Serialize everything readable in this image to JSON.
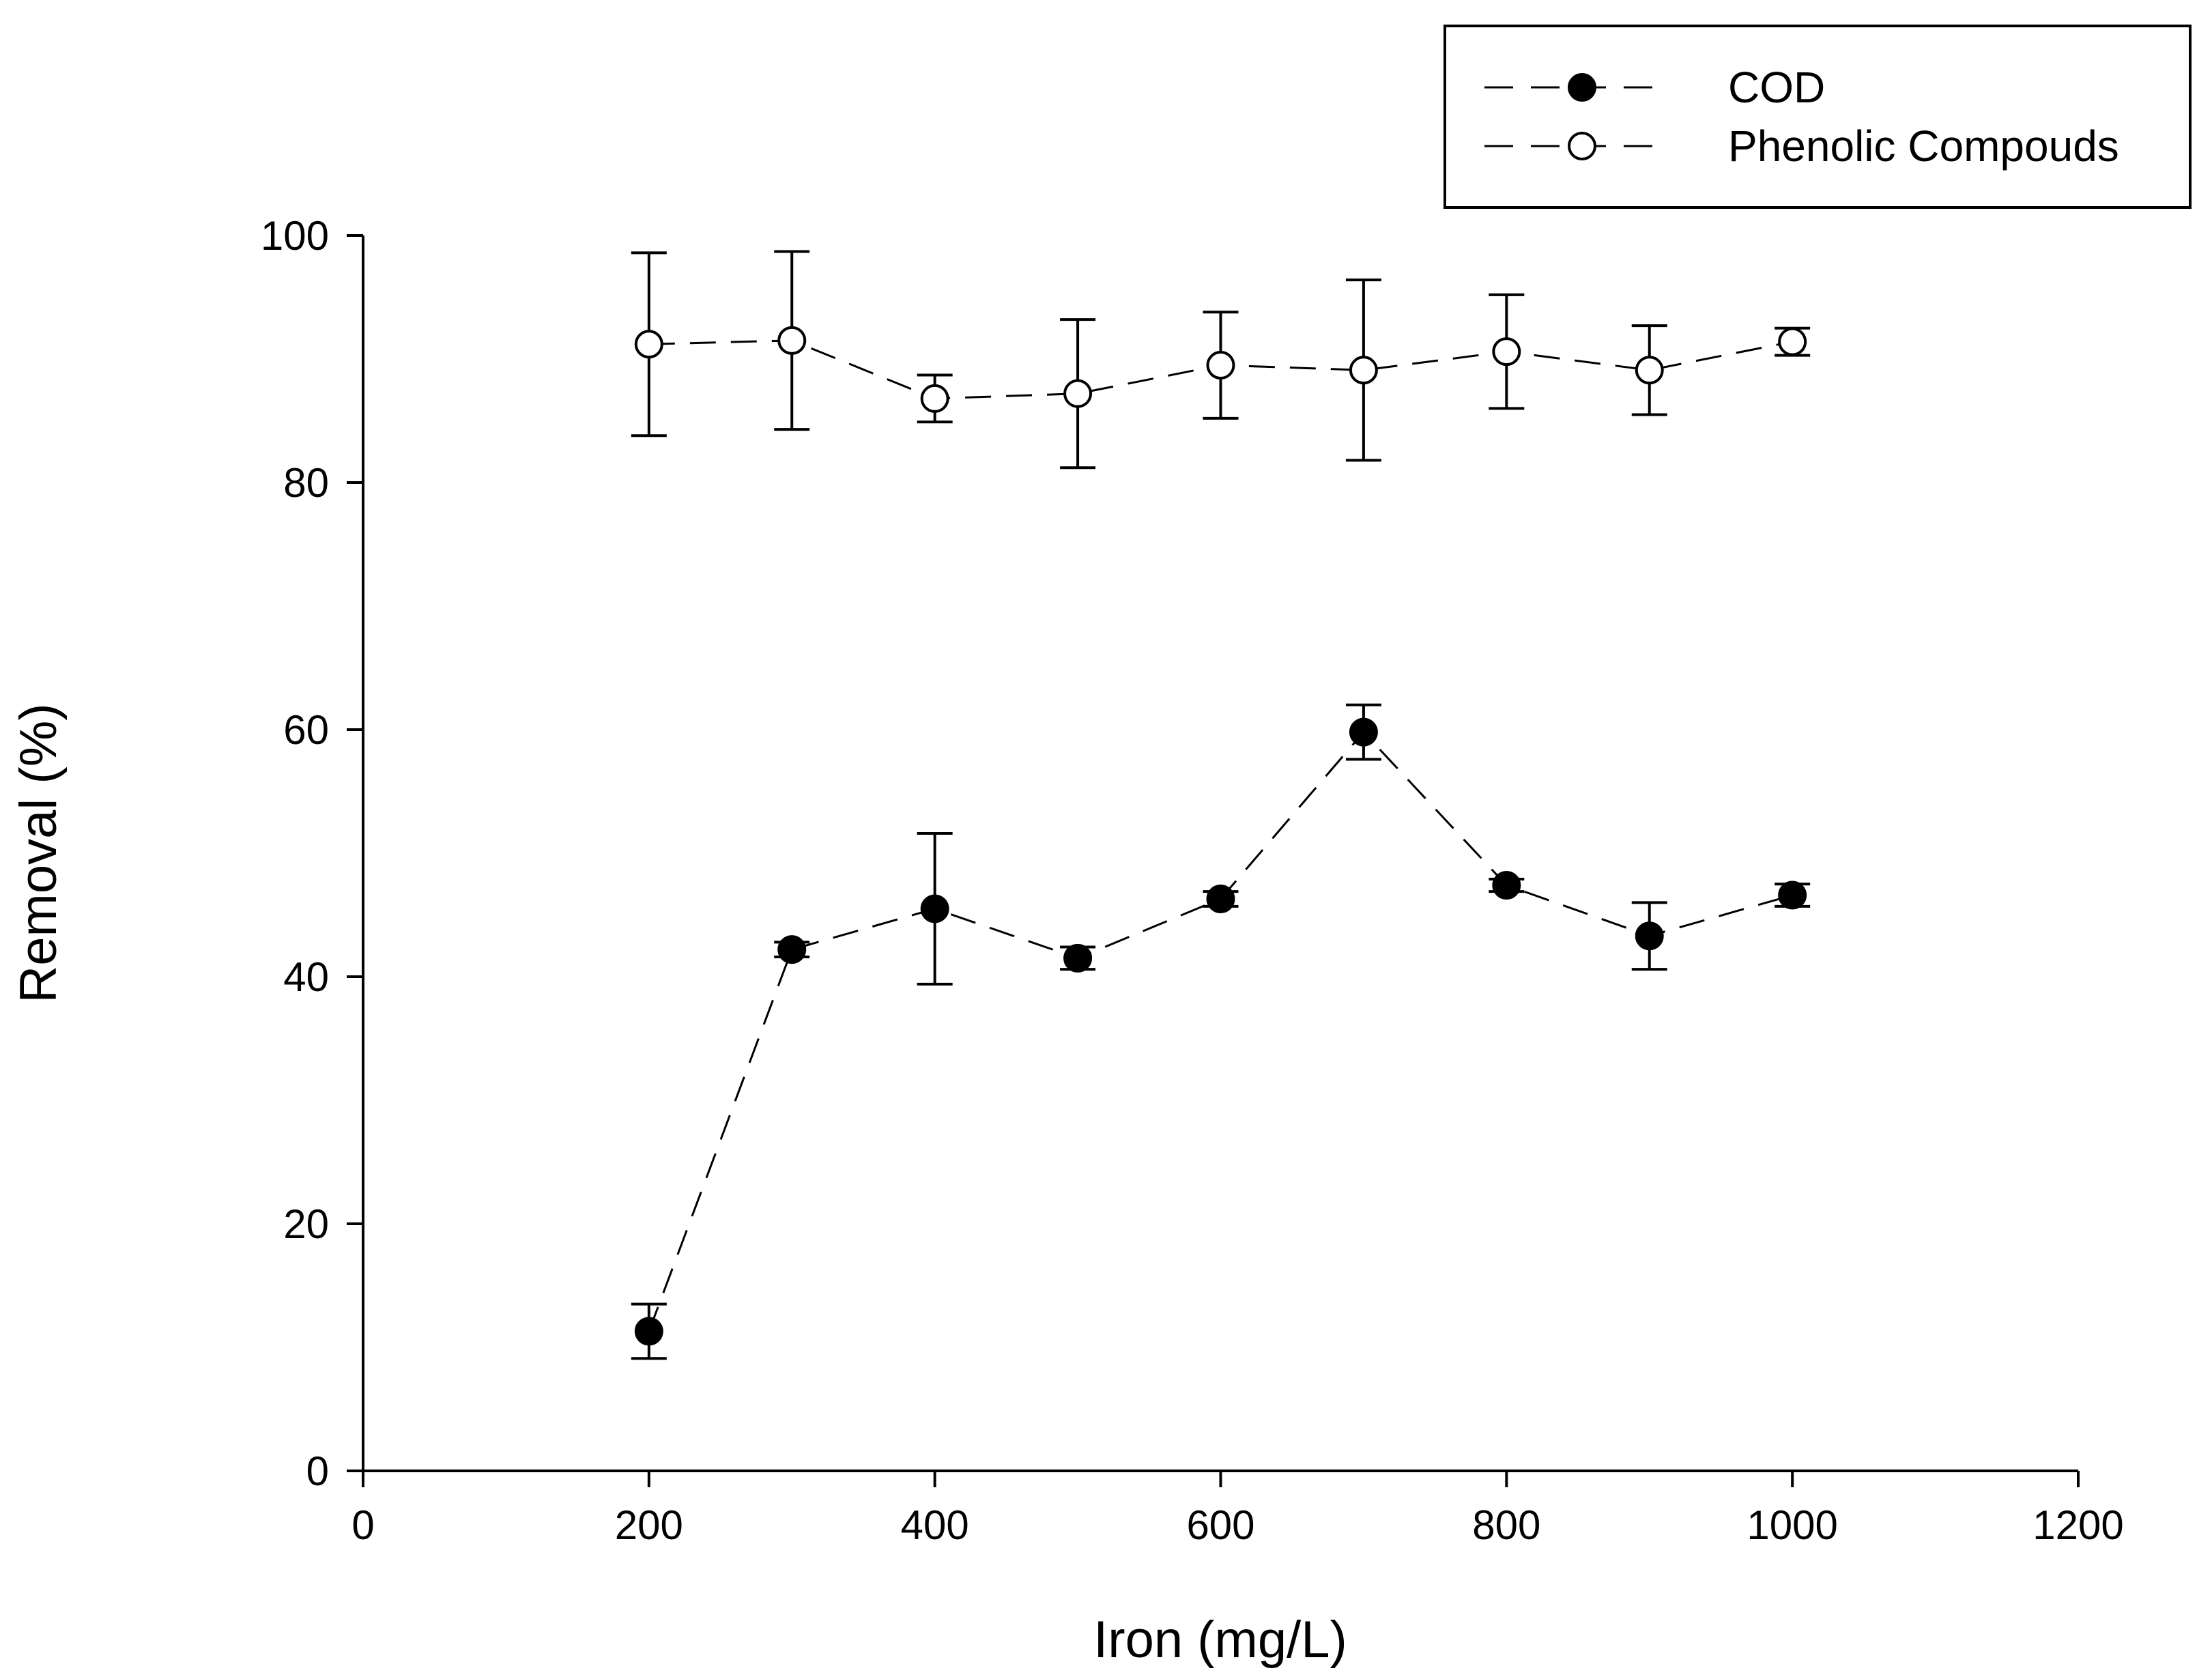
{
  "chart_data": {
    "type": "line",
    "title": "",
    "xlabel": "Iron (mg/L)",
    "ylabel": "Removal (%)",
    "xlim": [
      0,
      1200
    ],
    "ylim": [
      0,
      100
    ],
    "xticks": [
      0,
      200,
      400,
      600,
      800,
      1000,
      1200
    ],
    "yticks": [
      0,
      20,
      40,
      60,
      80,
      100
    ],
    "xtick_labels": [
      "0",
      "200",
      "400",
      "600",
      "800",
      "1000",
      "1200"
    ],
    "ytick_labels": [
      "0",
      "20",
      "40",
      "60",
      "80",
      "100"
    ],
    "grid": false,
    "legend_position": "top-right",
    "x": [
      200,
      300,
      400,
      500,
      600,
      700,
      800,
      900,
      1000
    ],
    "series": [
      {
        "name": "COD",
        "marker": "filled-circle",
        "line_style": "dashed",
        "values": [
          11.3,
          42.2,
          45.5,
          41.5,
          46.3,
          59.8,
          47.4,
          43.3,
          46.6
        ],
        "errors": [
          2.2,
          0.6,
          6.1,
          0.9,
          0.6,
          2.2,
          0.5,
          2.7,
          0.9
        ]
      },
      {
        "name": "Phenolic Compouds",
        "marker": "open-circle",
        "line_style": "dashed",
        "values": [
          91.2,
          91.5,
          86.8,
          87.2,
          89.5,
          89.1,
          90.6,
          89.1,
          91.4
        ],
        "errors": [
          7.4,
          7.2,
          1.9,
          6.0,
          4.3,
          7.3,
          4.6,
          3.6,
          1.1
        ]
      }
    ]
  }
}
